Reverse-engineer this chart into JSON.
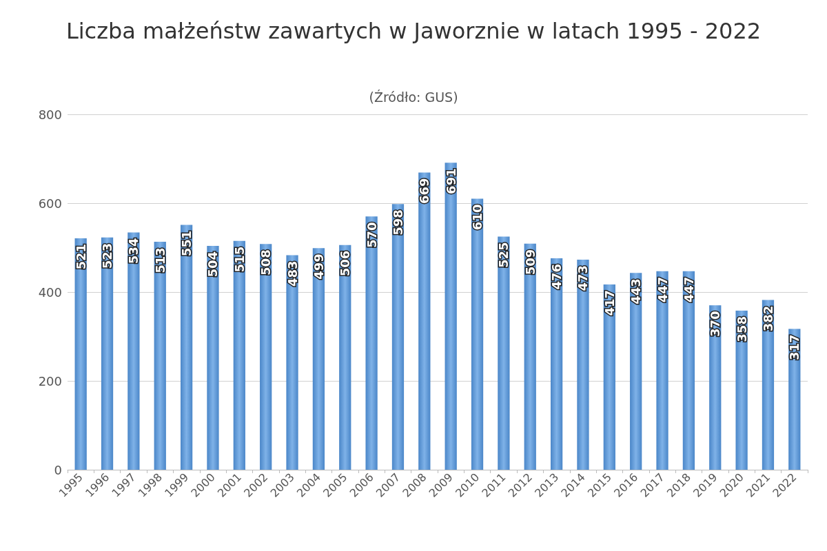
{
  "chart_data": {
    "type": "bar",
    "title": "Liczba małżeństw zawartych w Jaworznie w latach 1995 - 2022",
    "subtitle": "(Źródło: GUS)",
    "categories": [
      "1995",
      "1996",
      "1997",
      "1998",
      "1999",
      "2000",
      "2001",
      "2002",
      "2003",
      "2004",
      "2005",
      "2006",
      "2007",
      "2008",
      "2009",
      "2010",
      "2011",
      "2012",
      "2013",
      "2014",
      "2015",
      "2016",
      "2017",
      "2018",
      "2019",
      "2020",
      "2021",
      "2022"
    ],
    "values": [
      521,
      523,
      534,
      513,
      551,
      504,
      515,
      508,
      483,
      499,
      506,
      570,
      598,
      669,
      691,
      610,
      525,
      509,
      476,
      473,
      417,
      443,
      447,
      447,
      370,
      358,
      382,
      317
    ],
    "color": "#4a86c8",
    "ylim": [
      0,
      800
    ],
    "yticks": [
      0,
      200,
      400,
      600,
      800
    ],
    "grid": "y",
    "data_labels": true
  }
}
